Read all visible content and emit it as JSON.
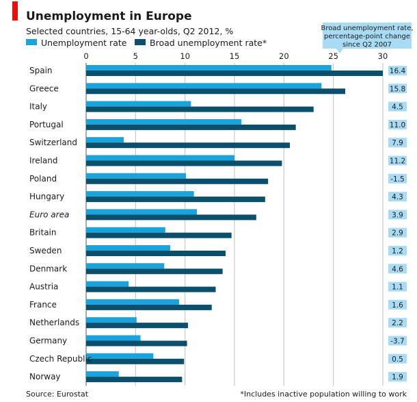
{
  "chart_data": {
    "type": "bar",
    "orientation": "horizontal",
    "title": "Unemployment in Europe",
    "subtitle": "Selected countries, 15-64 year-olds, Q2 2012, %",
    "categories": [
      "Spain",
      "Greece",
      "Italy",
      "Portugal",
      "Switzerland",
      "Ireland",
      "Poland",
      "Hungary",
      "Euro area",
      "Britain",
      "Sweden",
      "Denmark",
      "Austria",
      "France",
      "Netherlands",
      "Germany",
      "Czech Republic",
      "Norway"
    ],
    "italic_categories": [
      "Euro area"
    ],
    "series": [
      {
        "name": "Unemployment rate",
        "color": "#1ba3db",
        "values": [
          24.8,
          23.8,
          10.6,
          15.7,
          3.8,
          15.0,
          10.1,
          10.9,
          11.2,
          8.0,
          8.5,
          7.9,
          4.3,
          9.4,
          5.1,
          5.5,
          6.8,
          3.3
        ]
      },
      {
        "name": "Broad unemployment rate*",
        "color": "#0b4f6c",
        "values": [
          30.0,
          26.2,
          23.0,
          21.2,
          20.6,
          19.8,
          18.4,
          18.1,
          17.2,
          14.7,
          14.1,
          13.8,
          13.1,
          12.7,
          10.3,
          10.2,
          9.9,
          9.7
        ]
      }
    ],
    "xlim": [
      0,
      30
    ],
    "xticks": [
      "0",
      "5",
      "10",
      "15",
      "20",
      "25",
      "30"
    ],
    "grid": true,
    "legend_position": "top-left",
    "side_column": {
      "header": [
        "Broad unemployment rate,",
        "percentage-point change",
        "since Q2 2007"
      ],
      "values": [
        "16.4",
        "15.8",
        "4.5",
        "11.0",
        "7.9",
        "11.2",
        "-1.5",
        "4.3",
        "3.9",
        "2.9",
        "1.2",
        "4.6",
        "1.1",
        "1.6",
        "2.2",
        "-3.7",
        "0.5",
        "1.9"
      ],
      "color": "#a9dcf4"
    },
    "source": "Source: Eurostat",
    "footnote": "*Includes inactive population willing to work",
    "accent_color": "#e3120b"
  }
}
